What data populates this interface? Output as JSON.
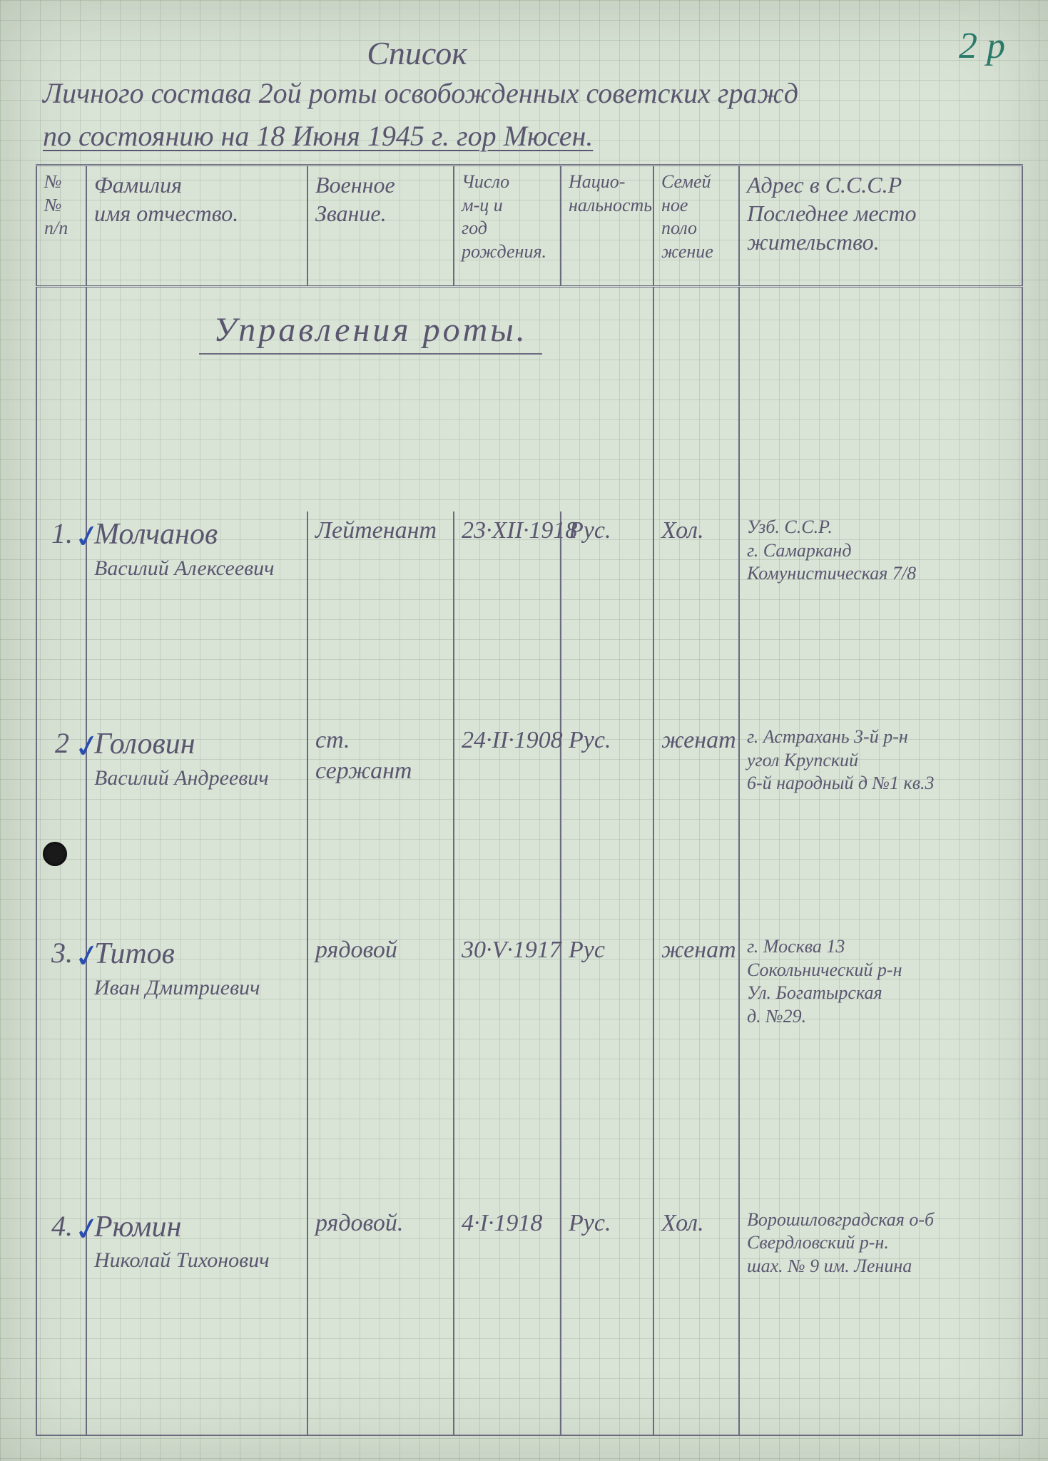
{
  "page_number": "2 р",
  "header": {
    "title_word": "Список",
    "line1": "Личного состава 2ой роты освобожденных советских гражд",
    "line2": "по состоянию на 18 Июня 1945 г.  гор Мюсен."
  },
  "columns": {
    "num": "№\n№\nп/п",
    "name": "Фамилия\nимя отчество.",
    "rank": "Военное\nЗвание.",
    "dob": "Число\nм-ц и\nгод\nрождения.",
    "nat": "Нацио-\nнальность",
    "fam": "Семей\nное\nполо\nжение",
    "addr": "Адрес в С.С.С.Р\nПоследнее место\nжительство."
  },
  "section_title": "Управления роты.",
  "rows": [
    {
      "n": "1.",
      "surname": "Молчанов",
      "given": "Василий Алексеевич",
      "rank": "Лейтенант",
      "dob": "23·XII·1918",
      "nat": "Рус.",
      "fam": "Хол.",
      "addr": "Узб. С.С.Р.\nг. Самарканд\nКомунистическая 7/8"
    },
    {
      "n": "2",
      "surname": "Головин",
      "given": "Василий Андреевич",
      "rank": "ст. сержант",
      "dob": "24·II·1908",
      "nat": "Рус.",
      "fam": "женат",
      "addr": "г. Астрахань 3-й р-н\nугол Крупский\n6-й народный д №1 кв.3"
    },
    {
      "n": "3.",
      "surname": "Титов",
      "given": "Иван Дмитриевич",
      "rank": "рядовой",
      "dob": "30·V·1917",
      "nat": "Рус",
      "fam": "женат",
      "addr": "г. Москва 13\nСокольнический р-н\nУл. Богатырская\nд. №29."
    },
    {
      "n": "4.",
      "surname": "Рюмин",
      "given": "Николай Тихонович",
      "rank": "рядовой.",
      "dob": "4·I·1918",
      "nat": "Рус.",
      "fam": "Хол.",
      "addr": "Ворошиловградская о-б\nСвердловский р-н.\nшах. № 9 им. Ленина"
    }
  ],
  "colors": {
    "paper": "#d9e4d6",
    "grid": "rgba(120,140,120,0.25)",
    "ink": "#5a5670",
    "blue_tick": "#2a4db0",
    "page_num": "#2a7a6a"
  }
}
